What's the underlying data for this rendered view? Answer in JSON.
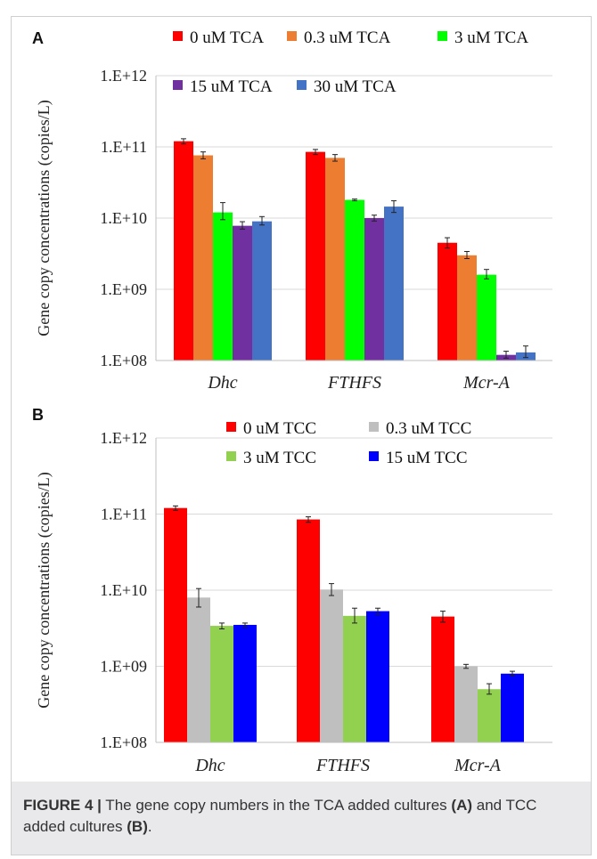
{
  "figure": {
    "caption_lead": "FIGURE 4 |",
    "caption_text_1": " The gene copy numbers in the TCA added cultures ",
    "caption_bold_a": "(A)",
    "caption_text_2": " and TCC added cultures ",
    "caption_bold_b": "(B)",
    "caption_end": "."
  },
  "chart_data": [
    {
      "panel": "A",
      "type": "bar",
      "yscale": "log",
      "ylabel": "Gene copy concentrations (copies/L)",
      "ylim": [
        100000000.0,
        1000000000000.0
      ],
      "yticks": [
        {
          "value": 100000000.0,
          "label": "1.E+08"
        },
        {
          "value": 1000000000.0,
          "label": "1.E+09"
        },
        {
          "value": 10000000000.0,
          "label": "1.E+10"
        },
        {
          "value": 100000000000.0,
          "label": "1.E+11"
        },
        {
          "value": 1000000000000.0,
          "label": "1.E+12"
        }
      ],
      "grid": true,
      "legend": "top",
      "categories": [
        "Dhc",
        "FTHFS",
        "Mcr-A"
      ],
      "series": [
        {
          "name": "0 uM TCA",
          "color": "#ff0000",
          "values": [
            120000000000.0,
            85000000000.0,
            4500000000.0
          ],
          "errors": [
            [
              110000000000.0,
              130000000000.0
            ],
            [
              78000000000.0,
              92000000000.0
            ],
            [
              3800000000.0,
              5300000000.0
            ]
          ]
        },
        {
          "name": "0.3 uM TCA",
          "color": "#ed7d31",
          "values": [
            76000000000.0,
            70000000000.0,
            3000000000.0
          ],
          "errors": [
            [
              68000000000.0,
              85000000000.0
            ],
            [
              63000000000.0,
              78000000000.0
            ],
            [
              2700000000.0,
              3400000000.0
            ]
          ]
        },
        {
          "name": "3 uM TCA",
          "color": "#00ff00",
          "values": [
            12000000000.0,
            18000000000.0,
            1600000000.0
          ],
          "errors": [
            [
              9500000000.0,
              16500000000.0
            ],
            [
              17500000000.0,
              18500000000.0
            ],
            [
              1400000000.0,
              1900000000.0
            ]
          ]
        },
        {
          "name": "15 uM TCA",
          "color": "#7030a0",
          "values": [
            7800000000.0,
            10000000000.0,
            120000000.0
          ],
          "errors": [
            [
              7000000000.0,
              8900000000.0
            ],
            [
              9100000000.0,
              11000000000.0
            ],
            [
              108000000.0,
              135000000.0
            ]
          ]
        },
        {
          "name": "30 uM TCA",
          "color": "#4472c4",
          "values": [
            9000000000.0,
            14500000000.0,
            130000000.0
          ],
          "errors": [
            [
              8000000000.0,
              10500000000.0
            ],
            [
              12000000000.0,
              17500000000.0
            ],
            [
              110000000.0,
              160000000.0
            ]
          ]
        }
      ]
    },
    {
      "panel": "B",
      "type": "bar",
      "yscale": "log",
      "ylabel": "Gene copy concentrations (copies/L)",
      "ylim": [
        100000000.0,
        1000000000000.0
      ],
      "yticks": [
        {
          "value": 100000000.0,
          "label": "1.E+08"
        },
        {
          "value": 1000000000.0,
          "label": "1.E+09"
        },
        {
          "value": 10000000000.0,
          "label": "1.E+10"
        },
        {
          "value": 100000000000.0,
          "label": "1.E+11"
        },
        {
          "value": 1000000000000.0,
          "label": "1.E+12"
        }
      ],
      "grid": true,
      "legend": "top",
      "categories": [
        "Dhc",
        "FTHFS",
        "Mcr-A"
      ],
      "series": [
        {
          "name": "0 uM TCC",
          "color": "#ff0000",
          "values": [
            120000000000.0,
            85000000000.0,
            4500000000.0
          ],
          "errors": [
            [
              112000000000.0,
              128000000000.0
            ],
            [
              78000000000.0,
              92000000000.0
            ],
            [
              3800000000.0,
              5300000000.0
            ]
          ]
        },
        {
          "name": "0.3 uM TCC",
          "color": "#bfbfbf",
          "values": [
            8000000000.0,
            10200000000.0,
            1000000000.0
          ],
          "errors": [
            [
              6000000000.0,
              10500000000.0
            ],
            [
              8500000000.0,
              12200000000.0
            ],
            [
              940000000.0,
              1060000000.0
            ]
          ]
        },
        {
          "name": "3 uM TCC",
          "color": "#92d050",
          "values": [
            3400000000.0,
            4600000000.0,
            500000000.0
          ],
          "errors": [
            [
              3100000000.0,
              3700000000.0
            ],
            [
              3700000000.0,
              5800000000.0
            ],
            [
              430000000.0,
              590000000.0
            ]
          ]
        },
        {
          "name": "15 uM TCC",
          "color": "#0000ff",
          "values": [
            3500000000.0,
            5300000000.0,
            800000000.0
          ],
          "errors": [
            [
              3300000000.0,
              3700000000.0
            ],
            [
              4800000000.0,
              5800000000.0
            ],
            [
              750000000.0,
              860000000.0
            ]
          ]
        }
      ]
    }
  ]
}
